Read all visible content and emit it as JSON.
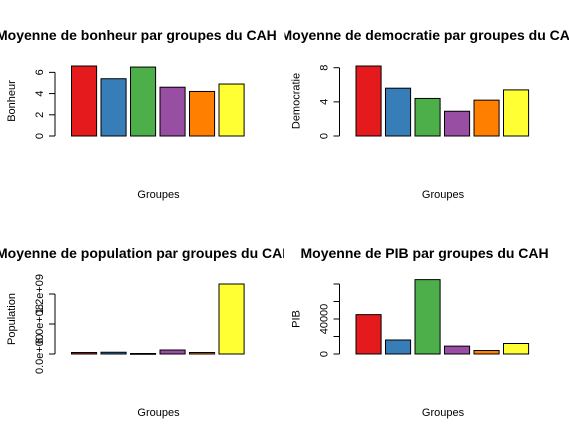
{
  "chart_data": [
    {
      "type": "bar",
      "title": "Moyenne de bonheur par groupes du CAH",
      "xlabel": "Groupes",
      "ylabel": "Bonheur",
      "yticks": [
        0,
        2,
        4,
        6
      ],
      "ytick_labels": [
        "0",
        "2",
        "4",
        "6"
      ],
      "ylim": [
        0,
        6.6
      ],
      "values": [
        6.6,
        5.4,
        6.5,
        4.6,
        4.2,
        4.9
      ]
    },
    {
      "type": "bar",
      "title": "Moyenne de democratie par groupes du CAH",
      "xlabel": "Groupes",
      "ylabel": "Democratie",
      "yticks": [
        0,
        4,
        8
      ],
      "ytick_labels": [
        "0",
        "4",
        "8"
      ],
      "ylim": [
        0,
        8.2
      ],
      "values": [
        8.2,
        5.6,
        4.4,
        2.9,
        4.2,
        5.4
      ]
    },
    {
      "type": "bar",
      "title": "Moyenne de population par groupes du CAH",
      "xlabel": "Groupes",
      "ylabel": "Population",
      "yticks": [
        0,
        600000000,
        1200000000
      ],
      "ytick_labels": [
        "0.0e+00",
        "6.0e+08",
        "1.2e+09"
      ],
      "ylim": [
        0,
        1400000000
      ],
      "values": [
        30000000,
        35000000,
        10000000,
        80000000,
        30000000,
        1400000000
      ]
    },
    {
      "type": "bar",
      "title": "Moyenne de PIB par groupes du CAH",
      "xlabel": "Groupes",
      "ylabel": "PIB",
      "yticks": [
        0,
        20000,
        40000,
        60000,
        80000
      ],
      "ytick_labels": [
        "0",
        "",
        "40000",
        "",
        ""
      ],
      "ylim": [
        0,
        80000
      ],
      "values": [
        45000,
        16000,
        85000,
        9000,
        4000,
        12000
      ]
    }
  ],
  "palette": [
    "#E41A1C",
    "#377EB8",
    "#4DAF4A",
    "#984EA3",
    "#FF7F00",
    "#FFFF33"
  ]
}
